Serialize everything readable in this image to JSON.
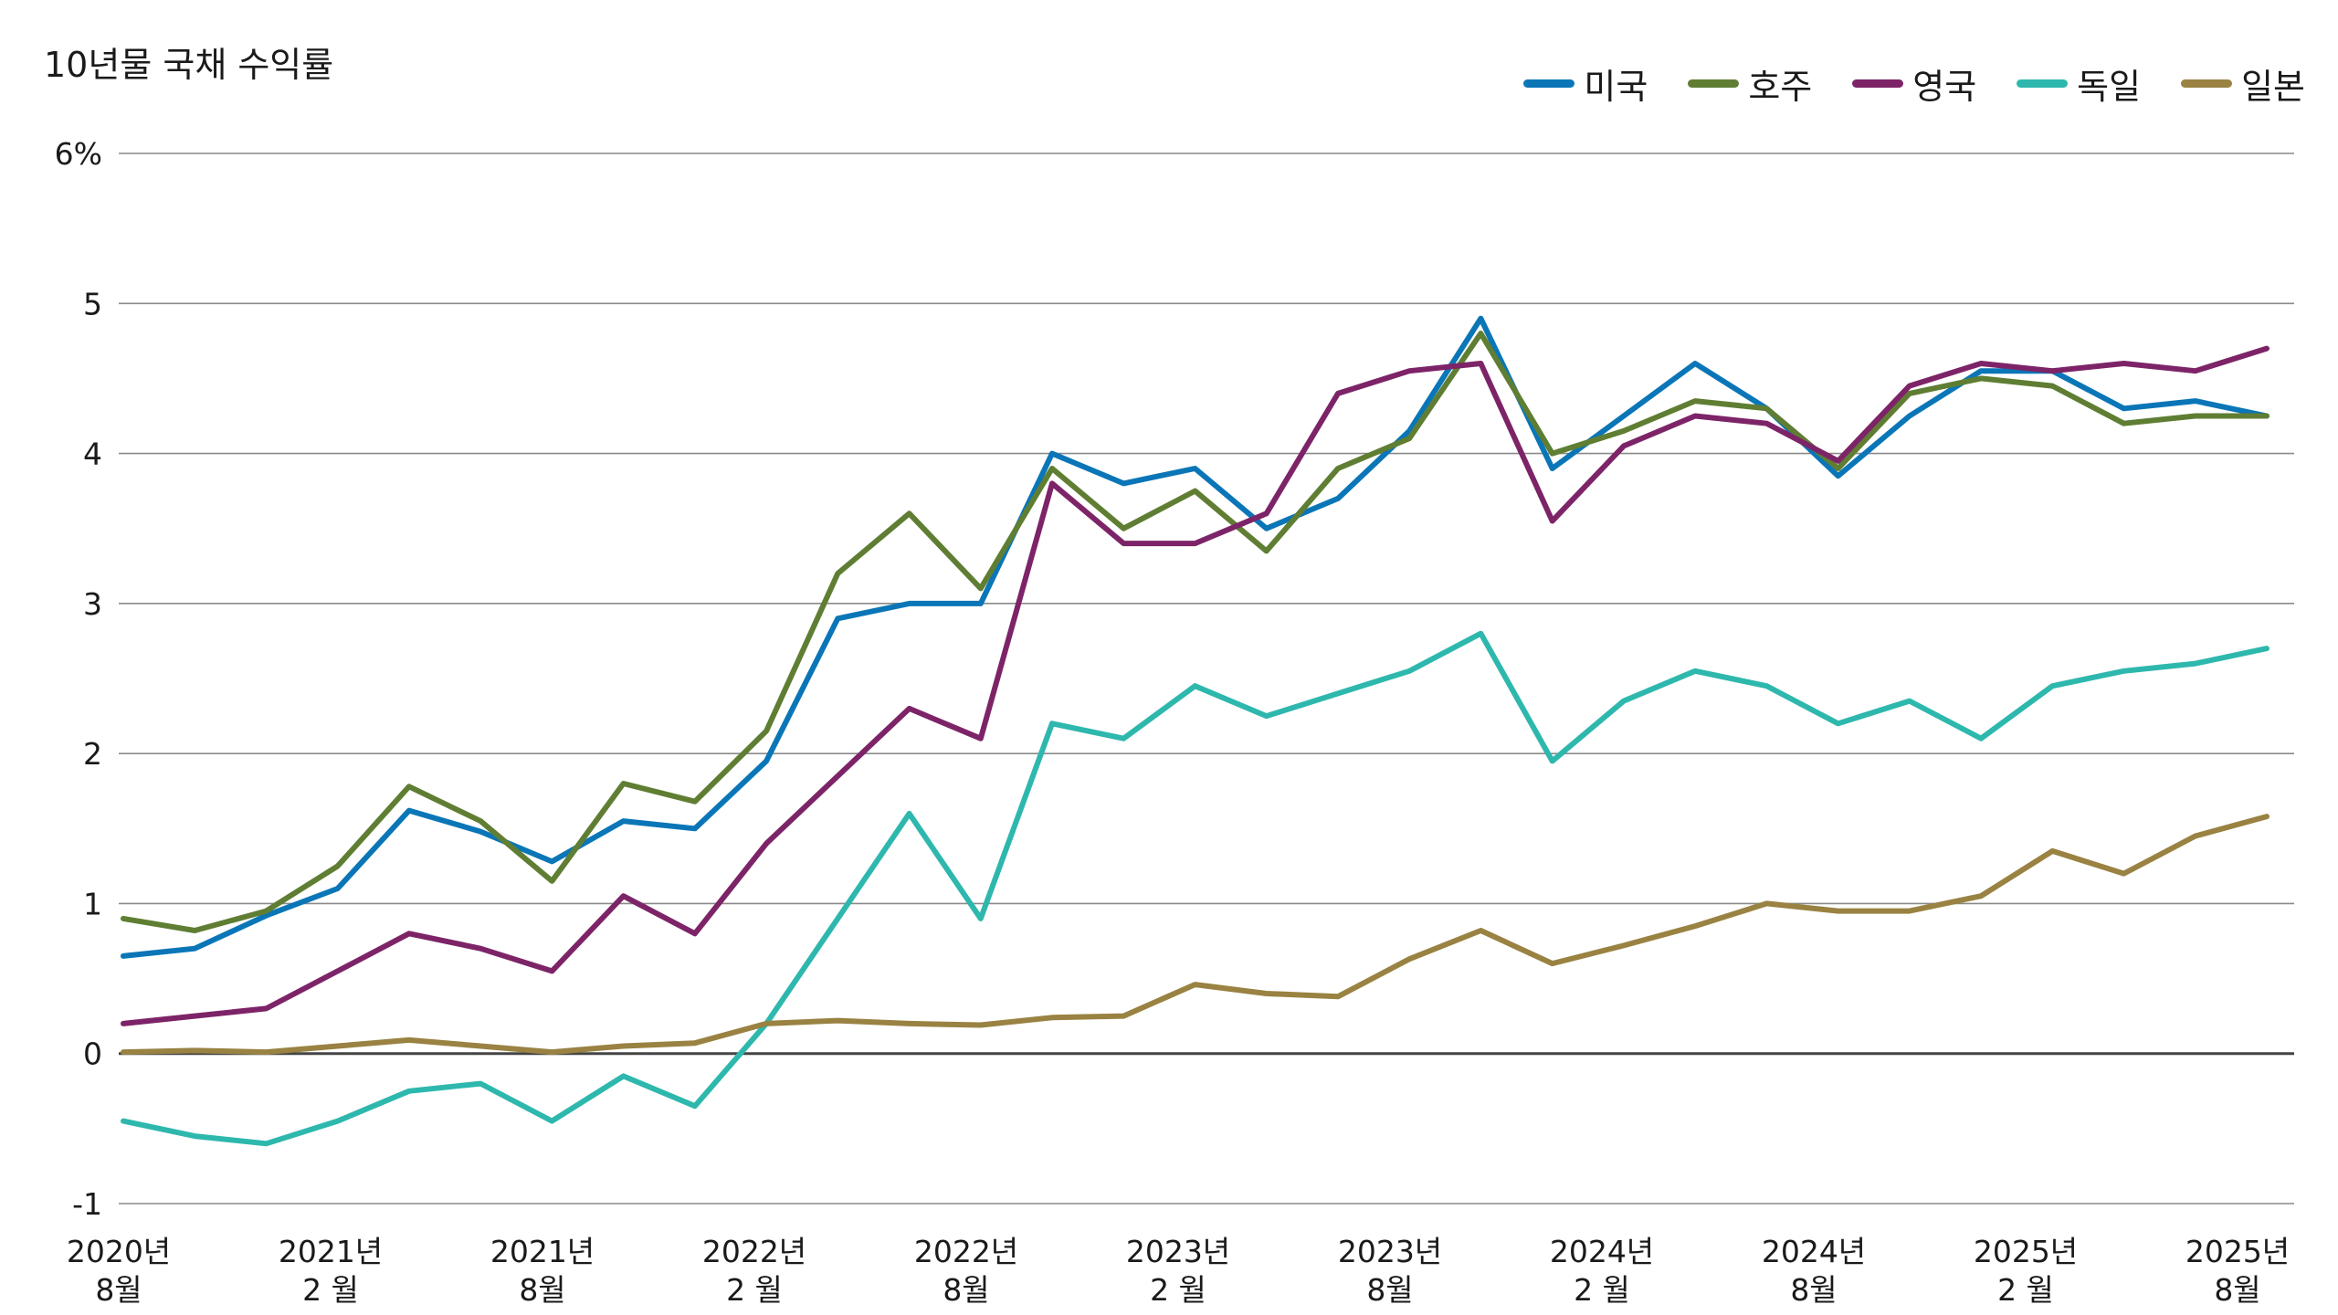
{
  "chart_data": {
    "type": "line",
    "title": "10년물 국채 수익률",
    "xlabel": "",
    "ylabel": "",
    "y_tick_labels": [
      "6%",
      "5",
      "4",
      "3",
      "2",
      "1",
      "0",
      "-1"
    ],
    "y_ticks": [
      6,
      5,
      4,
      3,
      2,
      1,
      0,
      -1
    ],
    "ylim": [
      -1,
      6
    ],
    "x_tick_labels": [
      [
        "2020년",
        "8월"
      ],
      [
        "2021년",
        "2 월"
      ],
      [
        "2021년",
        "8월"
      ],
      [
        "2022년",
        "2 월"
      ],
      [
        "2022년",
        "8월"
      ],
      [
        "2023년",
        "2 월"
      ],
      [
        "2023년",
        "8월"
      ],
      [
        "2024년",
        "2 월"
      ],
      [
        "2024년",
        "8월"
      ],
      [
        "2025년",
        "2 월"
      ],
      [
        "2025년",
        "8월"
      ]
    ],
    "x": [
      "2020-08",
      "2020-10",
      "2020-12",
      "2021-02",
      "2021-04",
      "2021-06",
      "2021-08",
      "2021-10",
      "2021-12",
      "2022-02",
      "2022-04",
      "2022-06",
      "2022-08",
      "2022-10",
      "2022-12",
      "2023-02",
      "2023-04",
      "2023-06",
      "2023-08",
      "2023-10",
      "2023-12",
      "2024-02",
      "2024-04",
      "2024-06",
      "2024-08",
      "2024-10",
      "2024-12",
      "2025-02",
      "2025-04",
      "2025-06",
      "2025-08"
    ],
    "grid": true,
    "legend_position": "top-right",
    "series": [
      {
        "name": "미국",
        "color": "#0a76b7",
        "values": [
          0.65,
          0.7,
          0.92,
          1.1,
          1.62,
          1.48,
          1.28,
          1.55,
          1.5,
          1.95,
          2.9,
          3.0,
          3.0,
          4.0,
          3.8,
          3.9,
          3.5,
          3.7,
          4.15,
          4.9,
          3.9,
          4.25,
          4.6,
          4.3,
          3.85,
          4.25,
          4.55,
          4.55,
          4.3,
          4.35,
          4.25
        ]
      },
      {
        "name": "호주",
        "color": "#5f7e33",
        "values": [
          0.9,
          0.82,
          0.95,
          1.25,
          1.78,
          1.55,
          1.15,
          1.8,
          1.68,
          2.15,
          3.2,
          3.6,
          3.1,
          3.9,
          3.5,
          3.75,
          3.35,
          3.9,
          4.1,
          4.8,
          4.0,
          4.15,
          4.35,
          4.3,
          3.9,
          4.4,
          4.5,
          4.45,
          4.2,
          4.25,
          4.25
        ]
      },
      {
        "name": "영국",
        "color": "#7d2468",
        "values": [
          0.2,
          0.25,
          0.3,
          0.55,
          0.8,
          0.7,
          0.55,
          1.05,
          0.8,
          1.4,
          1.85,
          2.3,
          2.1,
          3.8,
          3.4,
          3.4,
          3.6,
          4.4,
          4.55,
          4.6,
          3.55,
          4.05,
          4.25,
          4.2,
          3.95,
          4.45,
          4.6,
          4.55,
          4.6,
          4.55,
          4.7
        ]
      },
      {
        "name": "독일",
        "color": "#2eb8ad",
        "values": [
          -0.45,
          -0.55,
          -0.6,
          -0.45,
          -0.25,
          -0.2,
          -0.45,
          -0.15,
          -0.35,
          0.2,
          0.9,
          1.6,
          0.9,
          2.2,
          2.1,
          2.45,
          2.25,
          2.4,
          2.55,
          2.8,
          1.95,
          2.35,
          2.55,
          2.45,
          2.2,
          2.35,
          2.1,
          2.45,
          2.55,
          2.6,
          2.7
        ]
      },
      {
        "name": "일본",
        "color": "#998242",
        "values": [
          0.01,
          0.02,
          0.01,
          0.05,
          0.09,
          0.05,
          0.01,
          0.05,
          0.07,
          0.2,
          0.22,
          0.2,
          0.19,
          0.24,
          0.25,
          0.46,
          0.4,
          0.38,
          0.63,
          0.82,
          0.6,
          0.72,
          0.85,
          1.0,
          0.95,
          0.95,
          1.05,
          1.35,
          1.2,
          1.45,
          1.58
        ]
      }
    ]
  }
}
